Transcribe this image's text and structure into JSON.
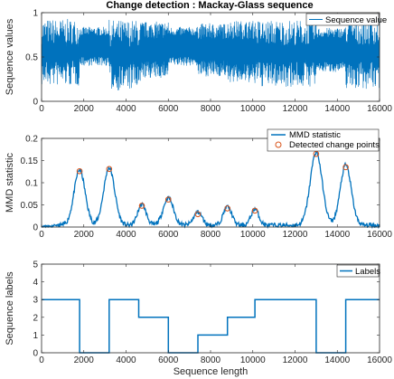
{
  "chart_data": [
    {
      "type": "line",
      "title": "Change detection : Mackay-Glass sequence",
      "xlabel": "",
      "ylabel": "Sequence values",
      "xlim": [
        0,
        16000
      ],
      "ylim": [
        0,
        1
      ],
      "xticks": [
        "0",
        "2000",
        "4000",
        "6000",
        "8000",
        "10000",
        "12000",
        "14000",
        "16000"
      ],
      "yticks": [
        "0",
        "0.5",
        "1"
      ],
      "legend": [
        "Sequence value"
      ],
      "legend_position": "top-right",
      "color": "#0072BD",
      "segments": [
        {
          "x": [
            0,
            1800
          ],
          "center": 0.55,
          "amplitude": 0.38,
          "style": "chaotic"
        },
        {
          "x": [
            1800,
            3200
          ],
          "center": 0.62,
          "amplitude": 0.22,
          "style": "regular"
        },
        {
          "x": [
            3200,
            4700
          ],
          "center": 0.52,
          "amplitude": 0.4,
          "style": "chaotic"
        },
        {
          "x": [
            4700,
            6000
          ],
          "center": 0.58,
          "amplitude": 0.32,
          "style": "dense"
        },
        {
          "x": [
            6000,
            7400
          ],
          "center": 0.62,
          "amplitude": 0.22,
          "style": "regular"
        },
        {
          "x": [
            7400,
            8800
          ],
          "center": 0.58,
          "amplitude": 0.3,
          "style": "dense"
        },
        {
          "x": [
            8800,
            10100
          ],
          "center": 0.56,
          "amplitude": 0.35,
          "style": "dense"
        },
        {
          "x": [
            10100,
            13000
          ],
          "center": 0.54,
          "amplitude": 0.38,
          "style": "chaotic"
        },
        {
          "x": [
            13000,
            14400
          ],
          "center": 0.58,
          "amplitude": 0.25,
          "style": "regular"
        },
        {
          "x": [
            14400,
            16000
          ],
          "center": 0.54,
          "amplitude": 0.4,
          "style": "chaotic"
        }
      ]
    },
    {
      "type": "line",
      "title": "",
      "xlabel": "",
      "ylabel": "MMD statistic",
      "xlim": [
        0,
        16000
      ],
      "ylim": [
        0,
        0.2
      ],
      "xticks": [
        "0",
        "2000",
        "4000",
        "6000",
        "8000",
        "10000",
        "12000",
        "14000",
        "16000"
      ],
      "yticks": [
        "0",
        "0.05",
        "0.1",
        "0.15",
        "0.2"
      ],
      "legend": [
        "MMD statistic",
        "Detected change points"
      ],
      "legend_position": "top-right",
      "color": "#0072BD",
      "marker_color": "#D95319",
      "baseline": 0.004,
      "peaks": [
        {
          "x": 1800,
          "y": 0.125,
          "width": 260
        },
        {
          "x": 3200,
          "y": 0.13,
          "width": 260
        },
        {
          "x": 4750,
          "y": 0.047,
          "width": 200
        },
        {
          "x": 6000,
          "y": 0.062,
          "width": 240
        },
        {
          "x": 7400,
          "y": 0.03,
          "width": 200
        },
        {
          "x": 8800,
          "y": 0.042,
          "width": 200
        },
        {
          "x": 10100,
          "y": 0.037,
          "width": 180
        },
        {
          "x": 13000,
          "y": 0.165,
          "width": 280
        },
        {
          "x": 14400,
          "y": 0.136,
          "width": 260
        }
      ],
      "change_points": [
        {
          "x": 1800,
          "y": 0.126
        },
        {
          "x": 3200,
          "y": 0.131
        },
        {
          "x": 4750,
          "y": 0.048
        },
        {
          "x": 6000,
          "y": 0.062
        },
        {
          "x": 7400,
          "y": 0.029
        },
        {
          "x": 8800,
          "y": 0.042
        },
        {
          "x": 10100,
          "y": 0.037
        },
        {
          "x": 13000,
          "y": 0.165
        },
        {
          "x": 14400,
          "y": 0.135
        }
      ]
    },
    {
      "type": "line",
      "title": "",
      "xlabel": "Sequence length",
      "ylabel": "Sequence labels",
      "xlim": [
        0,
        16000
      ],
      "ylim": [
        0,
        5
      ],
      "xticks": [
        "0",
        "2000",
        "4000",
        "6000",
        "8000",
        "10000",
        "12000",
        "14000",
        "16000"
      ],
      "yticks": [
        "0",
        "1",
        "2",
        "3",
        "4",
        "5"
      ],
      "legend": [
        "Labels"
      ],
      "legend_position": "top-right",
      "color": "#0072BD",
      "steps": [
        {
          "x": [
            0,
            1800
          ],
          "y": 3
        },
        {
          "x": [
            1800,
            3200
          ],
          "y": 0
        },
        {
          "x": [
            3200,
            4600
          ],
          "y": 3
        },
        {
          "x": [
            4600,
            6000
          ],
          "y": 2
        },
        {
          "x": [
            6000,
            7400
          ],
          "y": 0
        },
        {
          "x": [
            7400,
            8800
          ],
          "y": 1
        },
        {
          "x": [
            8800,
            10100
          ],
          "y": 2
        },
        {
          "x": [
            10100,
            13000
          ],
          "y": 3
        },
        {
          "x": [
            13000,
            14400
          ],
          "y": 0
        },
        {
          "x": [
            14400,
            16000
          ],
          "y": 3
        }
      ]
    }
  ]
}
